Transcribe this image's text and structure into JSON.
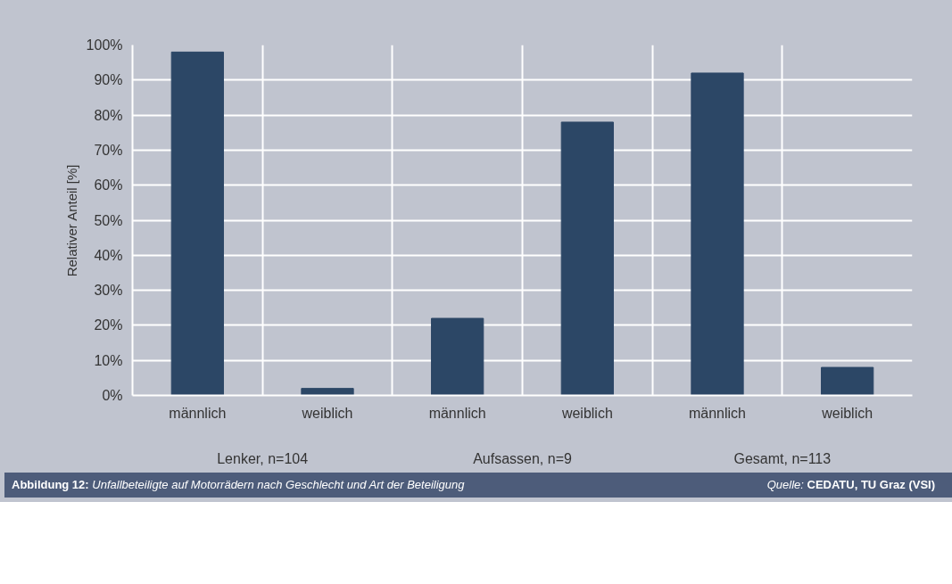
{
  "chart_data": {
    "type": "bar",
    "title": "Abbildung 12: Unfallbeteiligte auf Motorrädern nach Geschlecht und Art der Beteiligung",
    "ylabel": "Relativer Anteil [%]",
    "categories": [
      "männlich",
      "weiblich",
      "männlich",
      "weiblich",
      "männlich",
      "weiblich"
    ],
    "values": [
      98,
      2,
      22,
      78,
      92,
      8
    ],
    "color": "#2c4766",
    "ylim": [
      0,
      100
    ],
    "yticks": [
      {
        "value": 0,
        "label": "0%"
      },
      {
        "value": 10,
        "label": "10%"
      },
      {
        "value": 20,
        "label": "20%"
      },
      {
        "value": 30,
        "label": "30%"
      },
      {
        "value": 40,
        "label": "40%"
      },
      {
        "value": 50,
        "label": "50%"
      },
      {
        "value": 60,
        "label": "60%"
      },
      {
        "value": 70,
        "label": "70%"
      },
      {
        "value": 80,
        "label": "80%"
      },
      {
        "value": 90,
        "label": "90%"
      },
      {
        "value": 100,
        "label": "100%"
      }
    ],
    "grid": true,
    "annotations": [
      "Lenker, n=104",
      "Aufsassen, n=9",
      "Gesamt, n=113",
      "Quelle: CEDATU, TU Graz (VSI)"
    ]
  }
}
